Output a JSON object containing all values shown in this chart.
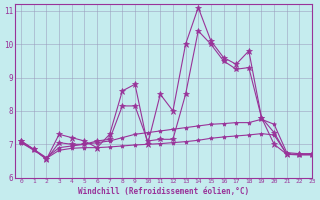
{
  "xlabel": "Windchill (Refroidissement éolien,°C)",
  "xlim": [
    -0.5,
    23
  ],
  "ylim": [
    6,
    11.2
  ],
  "yticks": [
    6,
    7,
    8,
    9,
    10,
    11
  ],
  "xticks": [
    0,
    1,
    2,
    3,
    4,
    5,
    6,
    7,
    8,
    9,
    10,
    11,
    12,
    13,
    14,
    15,
    16,
    17,
    18,
    19,
    20,
    21,
    22,
    23
  ],
  "background_color": "#c5ecee",
  "line_color": "#993399",
  "grid_color": "#9999bb",
  "series": [
    {
      "x": [
        0,
        1,
        2,
        3,
        4,
        5,
        6,
        7,
        8,
        9,
        10,
        11,
        12,
        13,
        14,
        15,
        16,
        17,
        18,
        19,
        20,
        21,
        22,
        23
      ],
      "y": [
        7.1,
        6.85,
        6.55,
        7.3,
        7.2,
        7.1,
        6.9,
        7.3,
        8.6,
        8.8,
        7.0,
        8.5,
        8.0,
        10.0,
        11.1,
        10.1,
        9.6,
        9.4,
        9.8,
        7.8,
        7.0,
        6.7,
        6.7,
        6.7
      ],
      "marker": "*",
      "markersize": 5
    },
    {
      "x": [
        0,
        1,
        2,
        3,
        4,
        5,
        6,
        7,
        8,
        9,
        10,
        11,
        12,
        13,
        14,
        15,
        16,
        17,
        18,
        19,
        20,
        21,
        22,
        23
      ],
      "y": [
        7.1,
        6.85,
        6.55,
        7.05,
        7.0,
        7.0,
        7.1,
        7.15,
        8.15,
        8.15,
        7.1,
        7.15,
        7.15,
        8.5,
        10.4,
        10.0,
        9.5,
        9.25,
        9.3,
        7.8,
        7.35,
        6.7,
        6.7,
        6.7
      ],
      "marker": "*",
      "markersize": 4
    },
    {
      "x": [
        0,
        1,
        2,
        3,
        4,
        5,
        6,
        7,
        8,
        9,
        10,
        11,
        12,
        13,
        14,
        15,
        16,
        17,
        18,
        19,
        20,
        21,
        22,
        23
      ],
      "y": [
        7.05,
        6.85,
        6.6,
        6.9,
        6.95,
        7.0,
        7.05,
        7.1,
        7.2,
        7.3,
        7.35,
        7.4,
        7.45,
        7.5,
        7.55,
        7.6,
        7.62,
        7.65,
        7.65,
        7.75,
        7.6,
        6.75,
        6.72,
        6.72
      ],
      "marker": "*",
      "markersize": 3
    },
    {
      "x": [
        0,
        1,
        2,
        3,
        4,
        5,
        6,
        7,
        8,
        9,
        10,
        11,
        12,
        13,
        14,
        15,
        16,
        17,
        18,
        19,
        20,
        21,
        22,
        23
      ],
      "y": [
        7.05,
        6.82,
        6.58,
        6.82,
        6.88,
        6.9,
        6.9,
        6.92,
        6.95,
        6.98,
        7.0,
        7.02,
        7.05,
        7.08,
        7.12,
        7.18,
        7.22,
        7.25,
        7.28,
        7.32,
        7.28,
        6.7,
        6.68,
        6.68
      ],
      "marker": "*",
      "markersize": 3
    }
  ]
}
